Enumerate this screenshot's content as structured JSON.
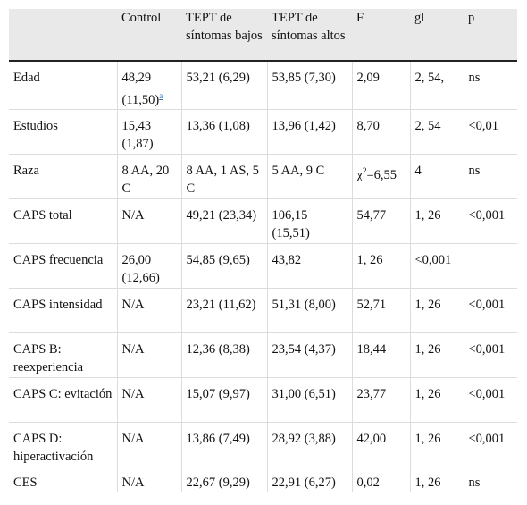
{
  "table": {
    "headers": [
      "",
      "Control",
      "TEPT de síntomas bajos",
      "TEPT de síntomas altos",
      "F",
      "gl",
      "p"
    ],
    "rows": [
      {
        "label": "Edad",
        "control": "48,29 (11,50)",
        "bajos": "53,21 (6,29)",
        "altos": "53,85 (7,30)",
        "f": "2,09",
        "gl": "2, 54,",
        "p": "ns"
      },
      {
        "label": "Estudios",
        "control": "15,43 (1,87)",
        "bajos": "13,36 (1,08)",
        "altos": "13,96 (1,42)",
        "f": "8,70",
        "gl": "2, 54",
        "p": "<0,01"
      },
      {
        "label": "Raza",
        "control": "8 AA, 20 C",
        "bajos": "8 AA, 1 AS, 5 C",
        "altos": "5 AA, 9 C",
        "f": "=6,55",
        "gl": "4",
        "p": "ns"
      },
      {
        "label": "CAPS total",
        "control": "N/A",
        "bajos": "49,21 (23,34)",
        "altos": "106,15 (15,51)",
        "f": "54,77",
        "gl": "1, 26",
        "p": "<0,001"
      },
      {
        "label": "CAPS frecuencia",
        "control": "26,00 (12,66)",
        "bajos": "54,85 (9,65)",
        "altos": "43,82",
        "f": "1, 26",
        "gl": "<0,001",
        "p": ""
      },
      {
        "label": "CAPS intensidad",
        "control": "N/A",
        "bajos": "23,21 (11,62)",
        "altos": "51,31 (8,00)",
        "f": "52,71",
        "gl": "1, 26",
        "p": "<0,001"
      },
      {
        "label": "CAPS B: reexperiencia",
        "control": "N/A",
        "bajos": "12,36 (8,38)",
        "altos": "23,54 (4,37)",
        "f": "18,44",
        "gl": "1, 26",
        "p": "<0,001"
      },
      {
        "label": "CAPS C: evitación",
        "control": "N/A",
        "bajos": "15,07 (9,97)",
        "altos": "31,00 (6,51)",
        "f": "23,77",
        "gl": "1, 26",
        "p": "<0,001"
      },
      {
        "label": "CAPS D: hiperactivación",
        "control": "N/A",
        "bajos": "13,86 (7,49)",
        "altos": "28,92 (3,88)",
        "f": "42,00",
        "gl": "1, 26",
        "p": "<0,001"
      },
      {
        "label": "CES",
        "control": "N/A",
        "bajos": "22,67 (9,29)",
        "altos": "22,91 (6,27)",
        "f": "0,02",
        "gl": "1, 26",
        "p": "ns"
      }
    ],
    "footnote_marker": "a",
    "chi_symbol": "χ",
    "chi_superscript": "2"
  }
}
